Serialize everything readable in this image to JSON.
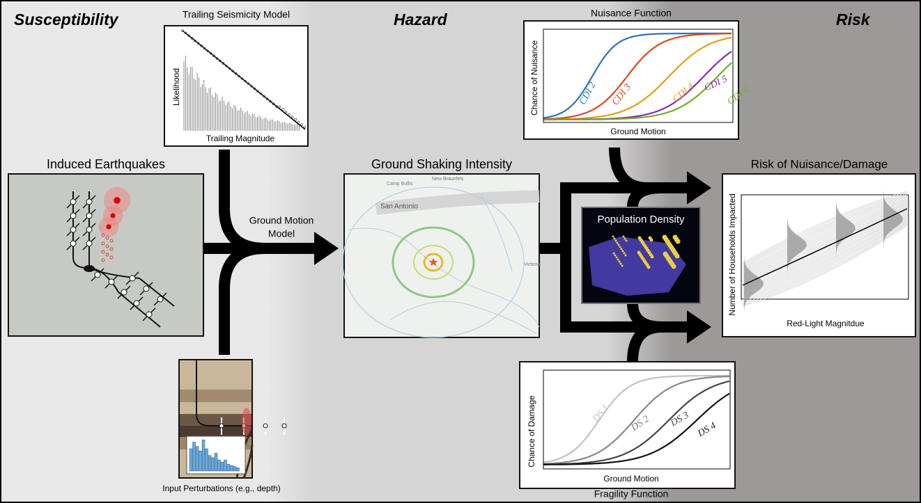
{
  "stages": [
    "Susceptibility",
    "Hazard",
    "Risk"
  ],
  "panels": {
    "trailing_seismicity": {
      "title": "Trailing Seismicity Model",
      "y_label": "Likelihood",
      "x_label": "Trailing Magnitude"
    },
    "nuisance": {
      "title": "Nuisance Function",
      "y_label": "Chance of Nuisance",
      "x_label": "Ground Motion",
      "curves": [
        "CDI 2",
        "CDI 3",
        "CDI 4",
        "CDI 5",
        "CDI 6"
      ]
    },
    "induced": {
      "title": "Induced Earthquakes"
    },
    "ground_motion_model": {
      "label_lines": [
        "Ground Motion",
        "Model"
      ]
    },
    "shaking": {
      "title": "Ground Shaking Intensity",
      "places": [
        "Camp Bullis",
        "New Braunfels",
        "San Antonio",
        "Victoria"
      ]
    },
    "population": {
      "title": "Population Density"
    },
    "risk": {
      "title": "Risk of Nuisance/Damage",
      "y_label": "Number of Households Impacted",
      "x_label": "Red-Light Magnitdue"
    },
    "perturbations": {
      "caption": "Input Perturbations (e.g., depth)"
    },
    "fragility": {
      "title": "Fragility Function",
      "y_label": "Chance of Damage",
      "x_label": "Ground Motion",
      "curves": [
        "DS 1",
        "DS 2",
        "DS 3",
        "DS 4"
      ]
    }
  }
}
